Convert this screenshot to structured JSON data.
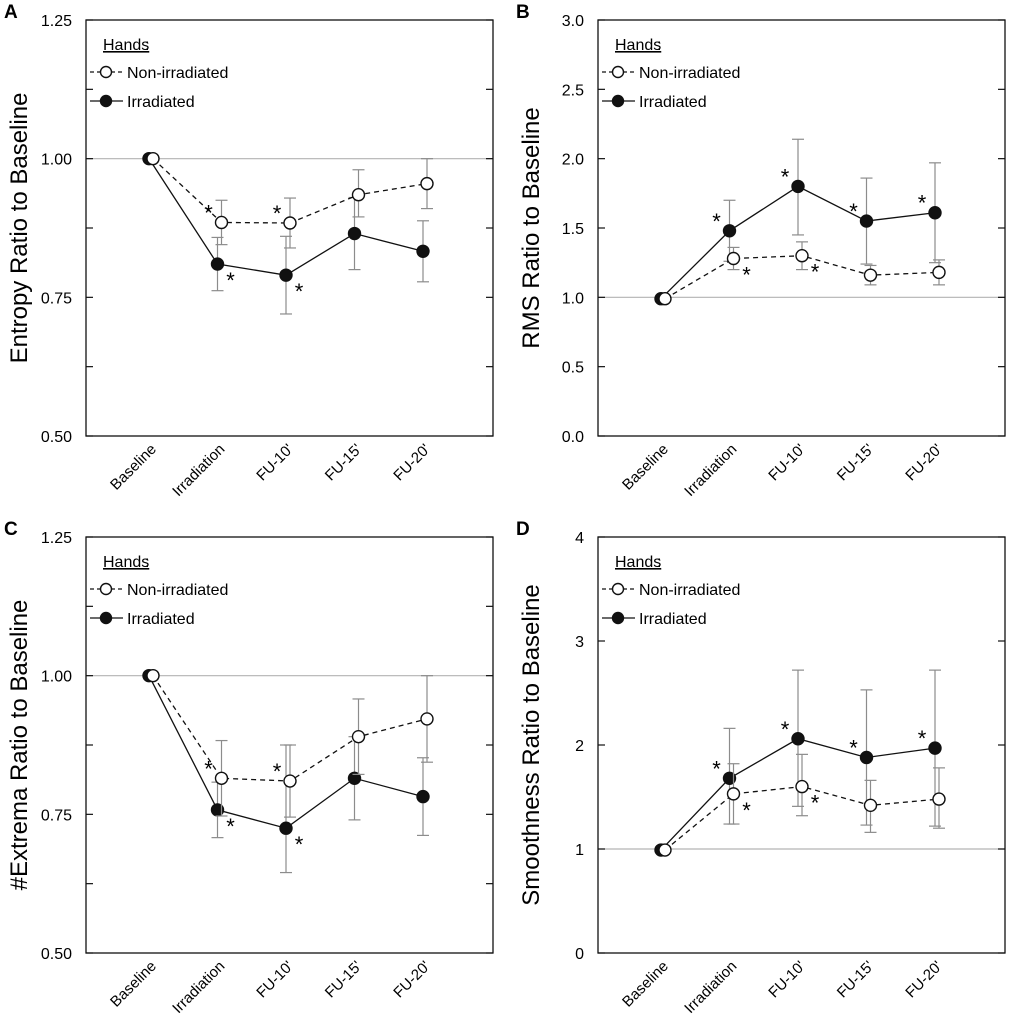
{
  "chart_data": [
    {
      "panel": "A",
      "type": "line",
      "ylabel": "Entropy Ratio to Baseline",
      "xlabel": "",
      "categories": [
        "Baseline",
        "Irradiation",
        "FU-10'",
        "FU-15'",
        "FU-20'"
      ],
      "ylim": [
        0.5,
        1.25
      ],
      "yticks": [
        "0.50",
        "0.75",
        "1.00",
        "1.25"
      ],
      "minor_yticks": [
        0.625,
        0.875,
        1.125
      ],
      "reference_line": 1.0,
      "legend": {
        "title": "Hands",
        "title_suffix": ":",
        "location": "top-left"
      },
      "series": [
        {
          "name": "Non-irradiated",
          "marker": "open-circle",
          "line": "dashed",
          "values": [
            1.0,
            0.885,
            0.884,
            0.935,
            0.955
          ],
          "err_low": [
            0,
            0.04,
            0.045,
            0.04,
            0.045
          ],
          "err_high": [
            0,
            0.04,
            0.045,
            0.045,
            0.045
          ],
          "significant": [
            false,
            true,
            true,
            false,
            false
          ],
          "star": "*"
        },
        {
          "name": "Irradiated",
          "marker": "filled-circle",
          "line": "solid",
          "values": [
            1.0,
            0.81,
            0.79,
            0.865,
            0.833
          ],
          "err_low": [
            0,
            0.048,
            0.07,
            0.065,
            0.055
          ],
          "err_high": [
            0,
            0.048,
            0.07,
            0.065,
            0.055
          ],
          "significant": [
            false,
            true,
            true,
            false,
            false
          ],
          "star": "*"
        }
      ]
    },
    {
      "panel": "B",
      "type": "line",
      "ylabel": "RMS Ratio to Baseline",
      "xlabel": "",
      "categories": [
        "Baseline",
        "Irradiation",
        "FU-10'",
        "FU-15'",
        "FU-20'"
      ],
      "ylim": [
        0.0,
        3.0
      ],
      "yticks": [
        "0.0",
        "0.5",
        "1.0",
        "1.5",
        "2.0",
        "2.5",
        "3.0"
      ],
      "minor_yticks": [],
      "reference_line": 1.0,
      "legend": {
        "title": "Hands",
        "title_suffix": ":",
        "location": "top-left"
      },
      "series": [
        {
          "name": "Non-irradiated",
          "marker": "open-circle",
          "line": "dashed",
          "values": [
            0.99,
            1.28,
            1.3,
            1.16,
            1.18
          ],
          "err_low": [
            0,
            0.08,
            0.1,
            0.07,
            0.09
          ],
          "err_high": [
            0,
            0.08,
            0.1,
            0.07,
            0.09
          ],
          "significant": [
            false,
            true,
            true,
            false,
            false
          ],
          "star": "*"
        },
        {
          "name": "Irradiated",
          "marker": "filled-circle",
          "line": "solid",
          "values": [
            0.99,
            1.48,
            1.8,
            1.55,
            1.61
          ],
          "err_low": [
            0,
            0.22,
            0.35,
            0.31,
            0.36
          ],
          "err_high": [
            0,
            0.22,
            0.34,
            0.31,
            0.36
          ],
          "significant": [
            false,
            true,
            true,
            true,
            true
          ],
          "star": "*"
        }
      ]
    },
    {
      "panel": "C",
      "type": "line",
      "ylabel": "#Extrema Ratio to Baseline",
      "xlabel": "",
      "categories": [
        "Baseline",
        "Irradiation",
        "FU-10'",
        "FU-15'",
        "FU-20'"
      ],
      "ylim": [
        0.5,
        1.25
      ],
      "yticks": [
        "0.50",
        "0.75",
        "1.00",
        "1.25"
      ],
      "minor_yticks": [
        0.625,
        0.875,
        1.125
      ],
      "reference_line": 1.0,
      "legend": {
        "title": "Hands",
        "title_suffix": ":",
        "location": "top-left"
      },
      "series": [
        {
          "name": "Non-irradiated",
          "marker": "open-circle",
          "line": "dashed",
          "values": [
            1.0,
            0.815,
            0.81,
            0.89,
            0.922
          ],
          "err_low": [
            0,
            0.068,
            0.065,
            0.068,
            0.078
          ],
          "err_high": [
            0,
            0.068,
            0.065,
            0.068,
            0.078
          ],
          "significant": [
            false,
            true,
            true,
            false,
            false
          ],
          "star": "*"
        },
        {
          "name": "Irradiated",
          "marker": "filled-circle",
          "line": "solid",
          "values": [
            1.0,
            0.758,
            0.725,
            0.815,
            0.782
          ],
          "err_low": [
            0,
            0.05,
            0.08,
            0.075,
            0.07
          ],
          "err_high": [
            0,
            0.05,
            0.15,
            0.075,
            0.07
          ],
          "significant": [
            false,
            true,
            true,
            false,
            false
          ],
          "star": "*"
        }
      ]
    },
    {
      "panel": "D",
      "type": "line",
      "ylabel": "Smoothness Ratio to Baseline",
      "xlabel": "",
      "categories": [
        "Baseline",
        "Irradiation",
        "FU-10'",
        "FU-15'",
        "FU-20'"
      ],
      "ylim": [
        0,
        4
      ],
      "yticks": [
        "0",
        "1",
        "2",
        "3",
        "4"
      ],
      "minor_yticks": [],
      "reference_line": 1.0,
      "legend": {
        "title": "Hands",
        "title_suffix": ":",
        "location": "top-left"
      },
      "series": [
        {
          "name": "Non-irradiated",
          "marker": "open-circle",
          "line": "dashed",
          "values": [
            0.99,
            1.53,
            1.6,
            1.42,
            1.48
          ],
          "err_low": [
            0,
            0.29,
            0.28,
            0.26,
            0.28
          ],
          "err_high": [
            0,
            0.29,
            0.31,
            0.24,
            0.3
          ],
          "significant": [
            false,
            true,
            true,
            false,
            false
          ],
          "star": "*"
        },
        {
          "name": "Irradiated",
          "marker": "filled-circle",
          "line": "solid",
          "values": [
            0.99,
            1.68,
            2.06,
            1.88,
            1.97
          ],
          "err_low": [
            0,
            0.44,
            0.65,
            0.65,
            0.75
          ],
          "err_high": [
            0,
            0.48,
            0.66,
            0.65,
            0.75
          ],
          "significant": [
            false,
            true,
            true,
            true,
            true
          ],
          "star": "*"
        }
      ]
    }
  ]
}
